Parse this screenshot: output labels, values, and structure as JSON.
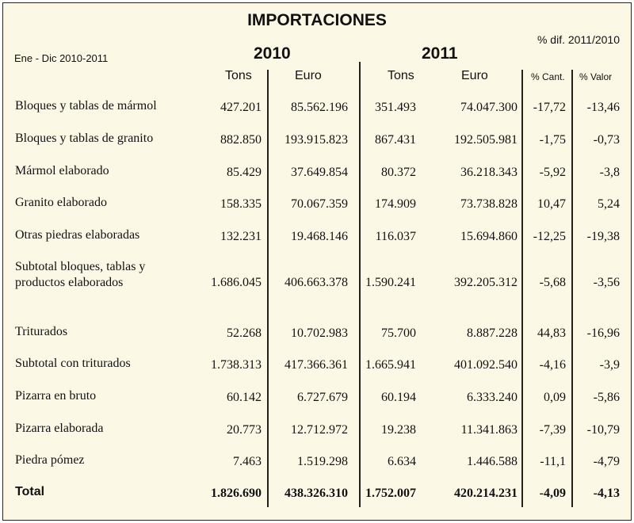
{
  "title": "IMPORTACIONES",
  "period": "Ene - Dic  2010-2011",
  "pct_header": "% dif. 2011/2010",
  "year_2010": "2010",
  "year_2011": "2011",
  "columns": {
    "tons_2010": "Tons",
    "euro_2010": "Euro",
    "tons_2011": "Tons",
    "euro_2011": "Euro",
    "pct_cant": "% Cant.",
    "pct_valor": "% Valor"
  },
  "rows": [
    {
      "label": "Bloques y tablas de mármol",
      "label2": "",
      "tons_2010": "427.201",
      "euro_2010": "85.562.196",
      "tons_2011": "351.493",
      "euro_2011": "74.047.300",
      "pct_cant": "-17,72",
      "pct_valor": "-13,46"
    },
    {
      "label": "Bloques y tablas de granito",
      "label2": "",
      "tons_2010": "882.850",
      "euro_2010": "193.915.823",
      "tons_2011": "867.431",
      "euro_2011": "192.505.981",
      "pct_cant": "-1,75",
      "pct_valor": "-0,73"
    },
    {
      "label": "Mármol elaborado",
      "label2": "",
      "tons_2010": "85.429",
      "euro_2010": "37.649.854",
      "tons_2011": "80.372",
      "euro_2011": "36.218.343",
      "pct_cant": "-5,92",
      "pct_valor": "-3,8"
    },
    {
      "label": "Granito elaborado",
      "label2": "",
      "tons_2010": "158.335",
      "euro_2010": "70.067.359",
      "tons_2011": "174.909",
      "euro_2011": "73.738.828",
      "pct_cant": "10,47",
      "pct_valor": "5,24"
    },
    {
      "label": "Otras piedras elaboradas",
      "label2": "",
      "tons_2010": "132.231",
      "euro_2010": "19.468.146",
      "tons_2011": "116.037",
      "euro_2011": "15.694.860",
      "pct_cant": "-12,25",
      "pct_valor": "-19,38"
    },
    {
      "label": "Subtotal bloques, tablas y",
      "label2": "productos elaborados",
      "tons_2010": "1.686.045",
      "euro_2010": "406.663.378",
      "tons_2011": "1.590.241",
      "euro_2011": "392.205.312",
      "pct_cant": "-5,68",
      "pct_valor": "-3,56"
    },
    {
      "label": "Triturados",
      "label2": "",
      "tons_2010": "52.268",
      "euro_2010": "10.702.983",
      "tons_2011": "75.700",
      "euro_2011": "8.887.228",
      "pct_cant": "44,83",
      "pct_valor": "-16,96"
    },
    {
      "label": "Subtotal con triturados",
      "label2": "",
      "tons_2010": "1.738.313",
      "euro_2010": "417.366.361",
      "tons_2011": "1.665.941",
      "euro_2011": "401.092.540",
      "pct_cant": "-4,16",
      "pct_valor": "-3,9"
    },
    {
      "label": "Pizarra en bruto",
      "label2": "",
      "tons_2010": "60.142",
      "euro_2010": "6.727.679",
      "tons_2011": "60.194",
      "euro_2011": "6.333.240",
      "pct_cant": "0,09",
      "pct_valor": "-5,86"
    },
    {
      "label": "Pizarra elaborada",
      "label2": "",
      "tons_2010": "20.773",
      "euro_2010": "12.712.972",
      "tons_2011": "19.238",
      "euro_2011": "11.341.863",
      "pct_cant": "-7,39",
      "pct_valor": "-10,79"
    },
    {
      "label": "Piedra pómez",
      "label2": "",
      "tons_2010": "7.463",
      "euro_2010": "1.519.298",
      "tons_2011": "6.634",
      "euro_2011": "1.446.588",
      "pct_cant": "-11,1",
      "pct_valor": "-4,79"
    }
  ],
  "total": {
    "label": "Total",
    "tons_2010": "1.826.690",
    "euro_2010": "438.326.310",
    "tons_2011": "1.752.007",
    "euro_2011": "420.214.231",
    "pct_cant": "-4,09",
    "pct_valor": "-4,13"
  }
}
